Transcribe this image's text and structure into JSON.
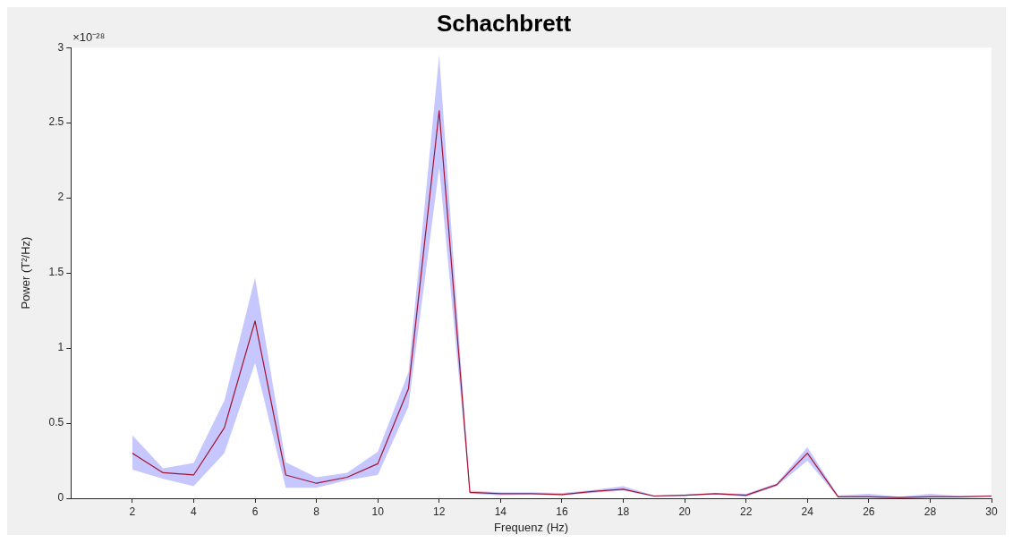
{
  "chart_data": {
    "type": "line",
    "title": "Schachbrett",
    "xlabel": "Frequenz (Hz)",
    "ylabel": "Power (T²/Hz)",
    "annotations": [
      "×10⁻²⁸"
    ],
    "x": [
      2,
      3,
      4,
      5,
      6,
      7,
      8,
      9,
      10,
      11,
      12,
      13,
      14,
      15,
      16,
      17,
      18,
      19,
      20,
      21,
      22,
      23,
      24,
      25,
      26,
      27,
      28,
      29,
      30
    ],
    "series": [
      {
        "color": "#a2142f",
        "values": [
          0.3,
          0.17,
          0.155,
          0.47,
          1.18,
          0.155,
          0.1,
          0.14,
          0.23,
          0.73,
          2.58,
          0.04,
          0.03,
          0.03,
          0.025,
          0.045,
          0.06,
          0.015,
          0.02,
          0.03,
          0.02,
          0.09,
          0.3,
          0.01,
          0.01,
          0.005,
          0.01,
          0.01,
          0.015
        ],
        "lower": [
          0.19,
          0.13,
          0.08,
          0.3,
          0.9,
          0.07,
          0.07,
          0.12,
          0.155,
          0.61,
          2.2,
          0.03,
          0.02,
          0.025,
          0.02,
          0.035,
          0.05,
          0.01,
          0.015,
          0.025,
          0.01,
          0.08,
          0.25,
          0.005,
          0.005,
          0.0,
          0.005,
          0.005,
          0.01
        ],
        "upper": [
          0.42,
          0.2,
          0.235,
          0.65,
          1.47,
          0.24,
          0.14,
          0.17,
          0.31,
          0.84,
          2.95,
          0.05,
          0.04,
          0.04,
          0.035,
          0.055,
          0.08,
          0.02,
          0.025,
          0.035,
          0.03,
          0.1,
          0.34,
          0.02,
          0.03,
          0.01,
          0.03,
          0.015,
          0.02
        ]
      }
    ],
    "xlim": [
      0,
      30
    ],
    "xticks": [
      2,
      4,
      6,
      8,
      10,
      12,
      14,
      16,
      18,
      20,
      22,
      24,
      26,
      28,
      30
    ],
    "ylim": [
      0,
      3
    ],
    "yticks": [
      0,
      0.5,
      1,
      1.5,
      2,
      2.5,
      3
    ],
    "marker": "none",
    "line_style": "solid"
  }
}
